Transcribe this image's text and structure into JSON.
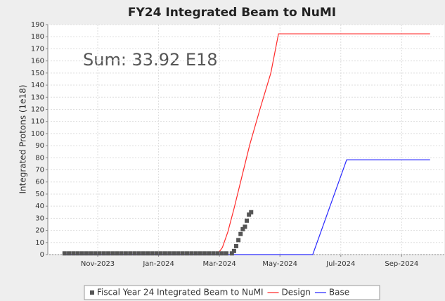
{
  "chart_data": {
    "type": "line",
    "title": "FY24 Integrated Beam to NuMI",
    "y_label": "Integrated Protons (1e18)",
    "annotation": "Sum: 33.92 E18",
    "xlim": [
      2023.696,
      2024.784
    ],
    "xticks": [
      {
        "value": 2023.833,
        "label": "Nov-2023"
      },
      {
        "value": 2024.0,
        "label": "Jan-2024"
      },
      {
        "value": 2024.167,
        "label": "Mar-2024"
      },
      {
        "value": 2024.333,
        "label": "May-2024"
      },
      {
        "value": 2024.5,
        "label": "Jul-2024"
      },
      {
        "value": 2024.667,
        "label": "Sep-2024"
      }
    ],
    "ylim": [
      0,
      190
    ],
    "yticks": [
      0,
      10,
      20,
      30,
      40,
      50,
      60,
      70,
      80,
      90,
      100,
      110,
      120,
      130,
      140,
      150,
      160,
      170,
      180,
      190
    ],
    "grid": true,
    "legend": "bottom",
    "series": [
      {
        "name": "Fiscal Year 24 Integrated Beam to NuMI",
        "color": "#555555",
        "marker": "square",
        "x": [
          2023.742,
          2023.754,
          2023.766,
          2023.778,
          2023.79,
          2023.802,
          2023.814,
          2023.826,
          2023.838,
          2023.85,
          2023.862,
          2023.874,
          2023.886,
          2023.898,
          2023.91,
          2023.922,
          2023.934,
          2023.946,
          2023.958,
          2023.97,
          2023.982,
          2023.994,
          2024.006,
          2024.018,
          2024.03,
          2024.042,
          2024.054,
          2024.066,
          2024.078,
          2024.09,
          2024.102,
          2024.114,
          2024.126,
          2024.138,
          2024.15,
          2024.162,
          2024.174,
          2024.186,
          2024.201,
          2024.207,
          2024.213,
          2024.219,
          2024.225,
          2024.231,
          2024.237,
          2024.242,
          2024.248,
          2024.254
        ],
        "values": [
          1,
          1,
          1,
          1,
          1,
          1,
          1,
          1,
          1,
          1,
          1,
          1,
          1,
          1,
          1,
          1,
          1,
          1,
          1,
          1,
          1,
          1,
          1,
          1,
          1,
          1,
          1,
          1,
          1,
          1,
          1,
          1,
          1,
          1,
          1,
          1,
          1,
          1,
          1,
          3,
          7,
          12,
          17,
          21,
          23,
          28,
          33,
          35
        ]
      },
      {
        "name": "Design",
        "color": "#ff2a2a",
        "x": [
          2023.742,
          2024.161,
          2024.175,
          2024.19,
          2024.207,
          2024.227,
          2024.25,
          2024.279,
          2024.308,
          2024.329,
          2024.745
        ],
        "values": [
          0,
          0,
          5.8,
          18.7,
          38,
          62.5,
          90.6,
          121,
          150,
          182.4,
          182.4
        ]
      },
      {
        "name": "Base",
        "color": "#2a2aff",
        "x": [
          2023.742,
          2024.423,
          2024.516,
          2024.745
        ],
        "values": [
          0,
          0,
          78.3,
          78.3
        ]
      }
    ]
  }
}
